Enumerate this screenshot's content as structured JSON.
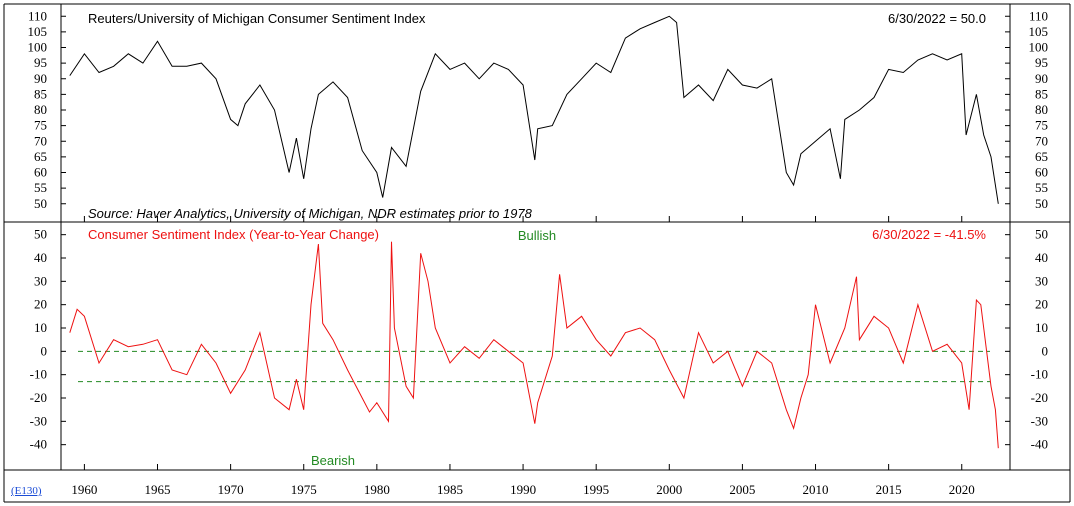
{
  "ref_link": "(E130)",
  "chart_data": [
    {
      "type": "line",
      "title": "Reuters/University of Michigan Consumer Sentiment Index",
      "latest_note": "6/30/2022 = 50.0",
      "source": "Source: Haver Analytics, University of Michigan, NDR estimates prior to 1978",
      "ylim": [
        48,
        112
      ],
      "yticks": [
        "50",
        "55",
        "60",
        "65",
        "70",
        "75",
        "80",
        "85",
        "90",
        "95",
        "100",
        "105",
        "110"
      ],
      "color": "#000000",
      "series": [
        {
          "x": [
            1959,
            1960,
            1961,
            1962,
            1963,
            1964,
            1965,
            1966,
            1967,
            1968,
            1969,
            1970,
            1970.5,
            1971,
            1972,
            1973,
            1974,
            1974.5,
            1975,
            1975.5,
            1976,
            1977,
            1978,
            1979,
            1980,
            1980.4,
            1981,
            1982,
            1983,
            1984,
            1985,
            1986,
            1987,
            1988,
            1989,
            1990,
            1990.8,
            1991,
            1992,
            1993,
            1994,
            1995,
            1996,
            1997,
            1998,
            1999,
            2000,
            2000.5,
            2001,
            2002,
            2003,
            2004,
            2005,
            2006,
            2007,
            2008,
            2008.5,
            2009,
            2010,
            2011,
            2011.7,
            2012,
            2013,
            2014,
            2015,
            2016,
            2017,
            2018,
            2019,
            2020,
            2020.3,
            2021,
            2021.5,
            2022,
            2022.5
          ],
          "y": [
            91,
            98,
            92,
            94,
            98,
            95,
            102,
            94,
            94,
            95,
            90,
            77,
            75,
            82,
            88,
            80,
            60,
            71,
            58,
            74,
            85,
            89,
            84,
            67,
            60,
            52,
            68,
            62,
            86,
            98,
            93,
            95,
            90,
            95,
            93,
            88,
            64,
            74,
            75,
            85,
            90,
            95,
            92,
            103,
            106,
            108,
            110,
            108,
            84,
            88,
            83,
            93,
            88,
            87,
            90,
            60,
            56,
            66,
            70,
            74,
            58,
            77,
            80,
            84,
            93,
            92,
            96,
            98,
            96,
            98,
            72,
            85,
            72,
            65,
            50
          ]
        }
      ],
      "xticks": [
        "1960",
        "1965",
        "1970",
        "1975",
        "1980",
        "1985",
        "1990",
        "1995",
        "2000",
        "2005",
        "2010",
        "2015",
        "2020"
      ],
      "xlim": [
        1958.4,
        2023.3
      ]
    },
    {
      "type": "line",
      "title": "Consumer Sentiment Index (Year-to-Year Change)",
      "latest_note": "6/30/2022 = -41.5%",
      "ylim": [
        -50,
        52
      ],
      "yticks": [
        "-40",
        "-30",
        "-20",
        "-10",
        "0",
        "10",
        "20",
        "30",
        "40",
        "50"
      ],
      "color": "#ee1111",
      "thresholds": [
        {
          "label": "Bullish",
          "value": 0,
          "color": "#238a23"
        },
        {
          "label": "Bearish",
          "value": -13,
          "color": "#238a23"
        }
      ],
      "series": [
        {
          "x": [
            1959,
            1959.5,
            1960,
            1961,
            1962,
            1963,
            1964,
            1965,
            1966,
            1967,
            1968,
            1969,
            1970,
            1971,
            1972,
            1973,
            1974,
            1974.5,
            1975,
            1975.5,
            1976,
            1976.3,
            1977,
            1978,
            1979,
            1979.5,
            1980,
            1980.8,
            1981,
            1981.2,
            1982,
            1982.5,
            1983,
            1983.5,
            1984,
            1985,
            1986,
            1987,
            1988,
            1989,
            1990,
            1990.8,
            1991,
            1992,
            1992.5,
            1993,
            1994,
            1995,
            1996,
            1997,
            1998,
            1999,
            2000,
            2001,
            2002,
            2003,
            2004,
            2005,
            2006,
            2007,
            2008,
            2008.5,
            2009,
            2009.5,
            2010,
            2011,
            2012,
            2012.8,
            2013,
            2014,
            2015,
            2016,
            2017,
            2018,
            2019,
            2020,
            2020.5,
            2021,
            2021.3,
            2022,
            2022.3,
            2022.5
          ],
          "y": [
            8,
            18,
            15,
            -5,
            5,
            2,
            3,
            5,
            -8,
            -10,
            3,
            -5,
            -18,
            -8,
            8,
            -20,
            -25,
            -12,
            -25,
            20,
            46,
            12,
            5,
            -8,
            -20,
            -26,
            -22,
            -30,
            47,
            10,
            -15,
            -20,
            42,
            30,
            10,
            -5,
            2,
            -3,
            5,
            0,
            -5,
            -31,
            -22,
            -2,
            33,
            10,
            15,
            5,
            -2,
            8,
            10,
            5,
            -8,
            -20,
            8,
            -5,
            0,
            -15,
            0,
            -5,
            -25,
            -33,
            -20,
            -10,
            20,
            -5,
            10,
            32,
            5,
            15,
            10,
            -5,
            20,
            0,
            3,
            -5,
            -25,
            22,
            20,
            -15,
            -25,
            -41.5
          ]
        }
      ],
      "xticks": [
        "1960",
        "1965",
        "1970",
        "1975",
        "1980",
        "1985",
        "1990",
        "1995",
        "2000",
        "2005",
        "2010",
        "2015",
        "2020"
      ],
      "xlim": [
        1958.4,
        2023.3
      ]
    }
  ]
}
